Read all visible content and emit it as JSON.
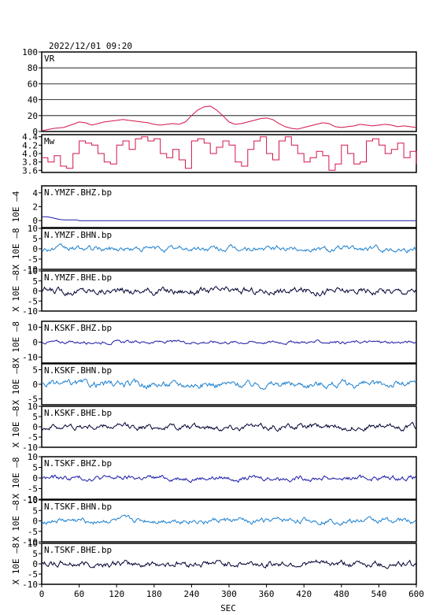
{
  "header": {
    "datetime": "2022/12/01 09:20"
  },
  "xaxis": {
    "label": "SEC",
    "ticks": [
      "0",
      "60",
      "120",
      "180",
      "240",
      "300",
      "360",
      "420",
      "480",
      "540",
      "600"
    ],
    "min": 0,
    "max": 600
  },
  "colors": {
    "vr_mw": "#d4144a",
    "z": "#1a1aa8",
    "n": "#1a7fd0",
    "e": "#000033",
    "frame": "#000000"
  },
  "chart_data": [
    {
      "type": "line",
      "id": "vr",
      "label": "VR",
      "ylabel": "",
      "yticks": [
        "0",
        "20",
        "40",
        "60",
        "80",
        "100"
      ],
      "ylim": [
        0,
        100
      ],
      "grid": true,
      "color": "#d4144a",
      "series": [
        {
          "x": [
            0,
            20,
            35,
            50,
            60,
            70,
            80,
            90,
            100,
            110,
            120,
            130,
            140,
            150,
            160,
            170,
            180,
            190,
            200,
            210,
            220,
            230,
            240,
            250,
            260,
            270,
            280,
            290,
            300,
            310,
            320,
            330,
            340,
            350,
            360,
            370,
            380,
            390,
            400,
            410,
            420,
            430,
            440,
            450,
            460,
            470,
            480,
            490,
            500,
            510,
            520,
            530,
            540,
            550,
            560,
            570,
            580,
            590,
            600
          ],
          "y": [
            1,
            4,
            5,
            9,
            12,
            11,
            8,
            10,
            12,
            13,
            14,
            15,
            14,
            13,
            12,
            11,
            9,
            8,
            9,
            10,
            9,
            12,
            20,
            27,
            31,
            32,
            27,
            20,
            12,
            9,
            10,
            12,
            14,
            16,
            17,
            15,
            10,
            6,
            4,
            3,
            5,
            7,
            9,
            11,
            10,
            6,
            5,
            6,
            7,
            9,
            8,
            7,
            8,
            9,
            8,
            6,
            7,
            6,
            5
          ]
        }
      ]
    },
    {
      "type": "line",
      "id": "mw",
      "label": "Mw",
      "ylabel": "",
      "yticks": [
        "3.6",
        "3.8",
        "4.0",
        "4.2",
        "4.4"
      ],
      "ylim": [
        3.55,
        4.45
      ],
      "grid": false,
      "color": "#d4144a",
      "series": [
        {
          "x": [
            0,
            10,
            20,
            30,
            40,
            50,
            60,
            70,
            80,
            90,
            100,
            110,
            120,
            130,
            140,
            150,
            160,
            170,
            180,
            190,
            200,
            210,
            220,
            230,
            240,
            250,
            260,
            270,
            280,
            290,
            300,
            310,
            320,
            330,
            340,
            350,
            360,
            370,
            380,
            390,
            400,
            410,
            420,
            430,
            440,
            450,
            460,
            470,
            480,
            490,
            500,
            510,
            520,
            530,
            540,
            550,
            560,
            570,
            580,
            590,
            600
          ],
          "y": [
            3.9,
            3.8,
            3.95,
            3.7,
            3.65,
            4.0,
            4.3,
            4.25,
            4.2,
            4.0,
            3.8,
            3.75,
            4.2,
            4.3,
            4.1,
            4.35,
            4.4,
            4.3,
            4.35,
            4.0,
            3.9,
            4.1,
            3.85,
            3.65,
            4.3,
            4.35,
            4.25,
            4.0,
            4.15,
            4.3,
            4.2,
            3.8,
            3.7,
            4.1,
            4.3,
            4.4,
            4.0,
            3.85,
            4.3,
            4.4,
            4.2,
            4.0,
            3.8,
            3.9,
            4.05,
            3.95,
            3.6,
            3.75,
            4.2,
            4.0,
            3.75,
            3.8,
            4.3,
            4.35,
            4.2,
            4.0,
            4.1,
            4.25,
            3.9,
            4.05,
            3.75
          ]
        }
      ]
    },
    {
      "type": "line",
      "id": "ymzf-z",
      "label": "N.YMZF.BHZ.bp",
      "ylabel": "10E –4",
      "yticks": [
        "0",
        "2",
        "4"
      ],
      "ylim": [
        -1,
        5
      ],
      "color": "#1a1aa8",
      "kind": "decay"
    },
    {
      "type": "line",
      "id": "ymzf-n",
      "label": "N.YMZF.BHN.bp",
      "ylabel": "X 10E –8",
      "yticks": [
        "-10",
        "-5",
        "0",
        "5",
        "10"
      ],
      "ylim": [
        -10,
        10
      ],
      "color": "#1a7fd0",
      "kind": "noise",
      "amp": 0.9
    },
    {
      "type": "line",
      "id": "ymzf-e",
      "label": "N.YMZF.BHE.bp",
      "ylabel": "X 10E –8",
      "yticks": [
        "-10",
        "-5",
        "0",
        "5",
        "10"
      ],
      "ylim": [
        -10,
        10
      ],
      "color": "#000033",
      "kind": "noise",
      "amp": 1.2
    },
    {
      "type": "line",
      "id": "kskf-z",
      "label": "N.KSKF.BHZ.bp",
      "ylabel": "X 10E –8",
      "yticks": [
        "-10",
        "0",
        "10"
      ],
      "ylim": [
        -14,
        14
      ],
      "color": "#1a1aa8",
      "kind": "noise",
      "amp": 0.7
    },
    {
      "type": "line",
      "id": "kskf-n",
      "label": "N.KSKF.BHN.bp",
      "ylabel": "X 10E –8",
      "yticks": [
        "-5",
        "0",
        "5"
      ],
      "ylim": [
        -7,
        7
      ],
      "color": "#1a7fd0",
      "kind": "noise",
      "amp": 0.8
    },
    {
      "type": "line",
      "id": "kskf-e",
      "label": "N.KSKF.BHE.bp",
      "ylabel": "X 10E –8",
      "yticks": [
        "-10",
        "-5",
        "0",
        "5",
        "10"
      ],
      "ylim": [
        -10,
        10
      ],
      "color": "#000033",
      "kind": "noise",
      "amp": 1.0
    },
    {
      "type": "line",
      "id": "tskf-z",
      "label": "N.TSKF.BHZ.bp",
      "ylabel": "X 10E –8",
      "yticks": [
        "-10",
        "-5",
        "0",
        "5",
        "10"
      ],
      "ylim": [
        -10,
        10
      ],
      "color": "#1a1aa8",
      "kind": "noise",
      "amp": 0.8
    },
    {
      "type": "line",
      "id": "tskf-n",
      "label": "N.TSKF.BHN.bp",
      "ylabel": "X 10E –8",
      "yticks": [
        "-10",
        "-5",
        "0",
        "5",
        "10"
      ],
      "ylim": [
        -10,
        10
      ],
      "color": "#1a7fd0",
      "kind": "noise",
      "amp": 0.9
    },
    {
      "type": "line",
      "id": "tskf-e",
      "label": "N.TSKF.BHE.bp",
      "ylabel": "X 10E –8",
      "yticks": [
        "-10",
        "-5",
        "0",
        "5",
        "10"
      ],
      "ylim": [
        -10,
        10
      ],
      "color": "#000033",
      "kind": "noise",
      "amp": 1.1
    }
  ]
}
